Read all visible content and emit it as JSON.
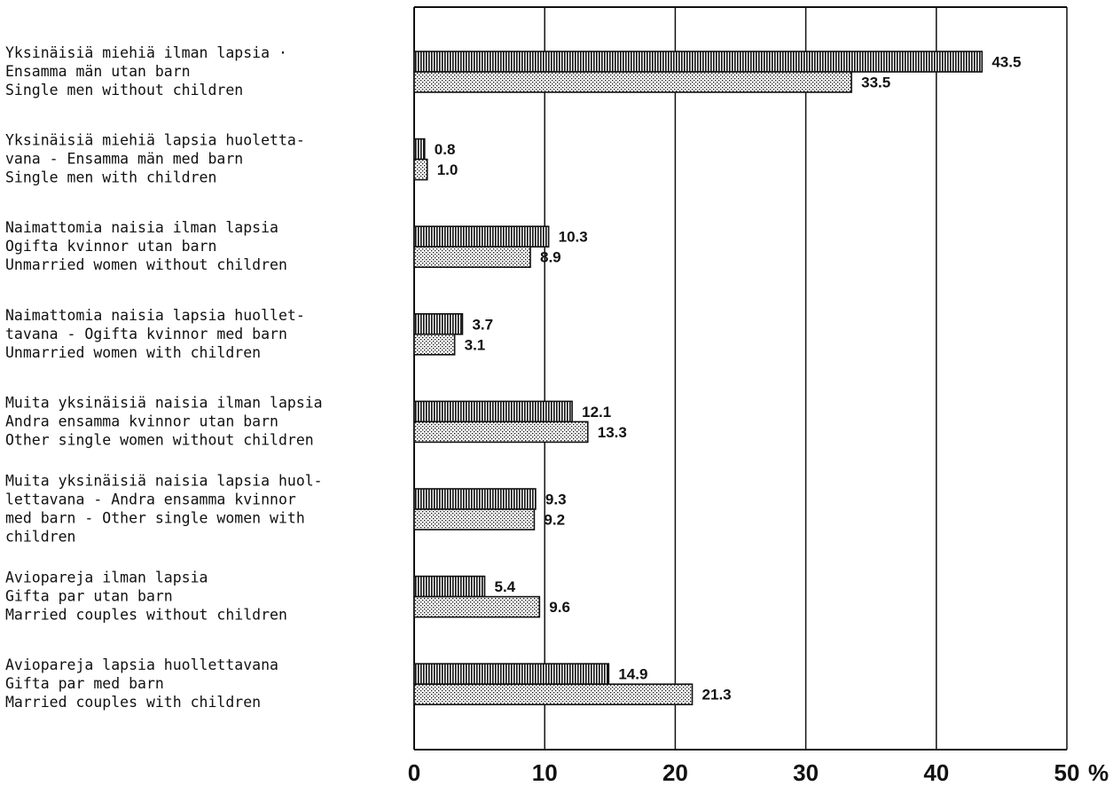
{
  "chart_data": {
    "type": "bar",
    "orientation": "horizontal",
    "categories": [
      [
        "Yksinäisiä miehiä ilman lapsia ·",
        "Ensamma män utan barn",
        "Single men without children"
      ],
      [
        "Yksinäisiä miehiä lapsia huoletta-",
        "vana - Ensamma män med barn",
        "Single men with children"
      ],
      [
        "Naimattomia naisia ilman lapsia",
        "Ogifta kvinnor utan barn",
        "Unmarried women without children"
      ],
      [
        "Naimattomia naisia lapsia huollet-",
        "tavana - Ogifta kvinnor med barn",
        "Unmarried women with children"
      ],
      [
        "Muita yksinäisiä naisia ilman lapsia",
        "Andra ensamma kvinnor utan barn",
        "Other single women without children"
      ],
      [
        "Muita yksinäisiä naisia lapsia huol-",
        "lettavana - Andra ensamma kvinnor",
        "med barn - Other single women with",
        "children"
      ],
      [
        "Aviopareja ilman lapsia",
        "Gifta par utan barn",
        "Married couples without children"
      ],
      [
        "Aviopareja lapsia huollettavana",
        "Gifta par med barn",
        "Married couples with children"
      ]
    ],
    "series": [
      {
        "pattern": "vertical-stripes",
        "values": [
          43.5,
          0.8,
          10.3,
          3.7,
          12.1,
          9.3,
          5.4,
          14.9
        ]
      },
      {
        "pattern": "dots",
        "values": [
          33.5,
          1.0,
          8.9,
          3.1,
          13.3,
          9.2,
          9.6,
          21.3
        ]
      }
    ],
    "value_labels": [
      [
        "43.5",
        "0.8",
        "10.3",
        "3.7",
        "12.1",
        "9.3",
        "5.4",
        "14.9"
      ],
      [
        "33.5",
        "1.0",
        "8.9",
        "3.1",
        "13.3",
        "9.2",
        "9.6",
        "21.3"
      ]
    ],
    "xlim": [
      0,
      50
    ],
    "xticks": [
      0,
      10,
      20,
      30,
      40,
      50
    ],
    "xtick_labels": [
      "0",
      "10",
      "20",
      "30",
      "40",
      "50"
    ],
    "x_unit": "%",
    "grid": "vertical",
    "legend": "none",
    "colors": {
      "ink": "#111111",
      "background": "#ffffff"
    }
  }
}
